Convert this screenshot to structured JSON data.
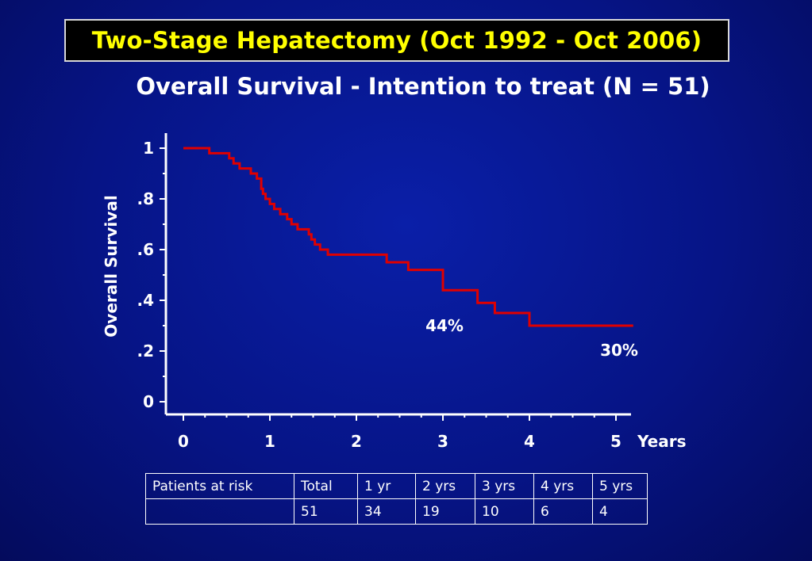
{
  "title": "Two-Stage Hepatectomy (Oct 1992 - Oct 2006)",
  "subtitle": "Overall Survival - Intention to treat (N = 51)",
  "colors": {
    "background": "#061486",
    "title_text": "#ffff00",
    "title_box": "#000000",
    "curve": "#e00000",
    "text": "#ffffff"
  },
  "chart_data": {
    "type": "line",
    "step": true,
    "ylabel": "Overall Survival",
    "xlabel": "Years",
    "xlim": [
      0,
      5.2
    ],
    "ylim": [
      0,
      1
    ],
    "x_ticks": [
      0,
      1,
      2,
      3,
      4,
      5
    ],
    "x_tick_labels": [
      "0",
      "1",
      "2",
      "3",
      "4",
      "5"
    ],
    "y_ticks": [
      0,
      0.2,
      0.4,
      0.6,
      0.8,
      1
    ],
    "y_tick_labels": [
      "0",
      ".2",
      ".4",
      ".6",
      ".8",
      "1"
    ],
    "grid": false,
    "series": [
      {
        "x": [
          0,
          0.3,
          0.53,
          0.58,
          0.65,
          0.78,
          0.85,
          0.9,
          0.92,
          0.95,
          1.0,
          1.05,
          1.12,
          1.2,
          1.25,
          1.32,
          1.45,
          1.48,
          1.52,
          1.58,
          1.67,
          2.35,
          2.6,
          3.0,
          3.4,
          3.6,
          4.0,
          5.2
        ],
        "y": [
          1.0,
          0.98,
          0.96,
          0.94,
          0.92,
          0.9,
          0.88,
          0.84,
          0.82,
          0.8,
          0.78,
          0.76,
          0.74,
          0.72,
          0.7,
          0.68,
          0.66,
          0.64,
          0.62,
          0.6,
          0.58,
          0.55,
          0.52,
          0.44,
          0.39,
          0.35,
          0.3,
          0.3
        ]
      }
    ],
    "annotations": [
      {
        "text": "44%",
        "x": 3.0,
        "y": 0.44
      },
      {
        "text": "30%",
        "x": 5.0,
        "y": 0.3
      }
    ]
  },
  "risk_table": {
    "header": [
      "Patients at risk",
      "Total",
      "1 yr",
      "2 yrs",
      "3 yrs",
      "4 yrs",
      "5 yrs"
    ],
    "row": [
      "",
      "51",
      "34",
      "19",
      "10",
      "6",
      "4"
    ]
  }
}
